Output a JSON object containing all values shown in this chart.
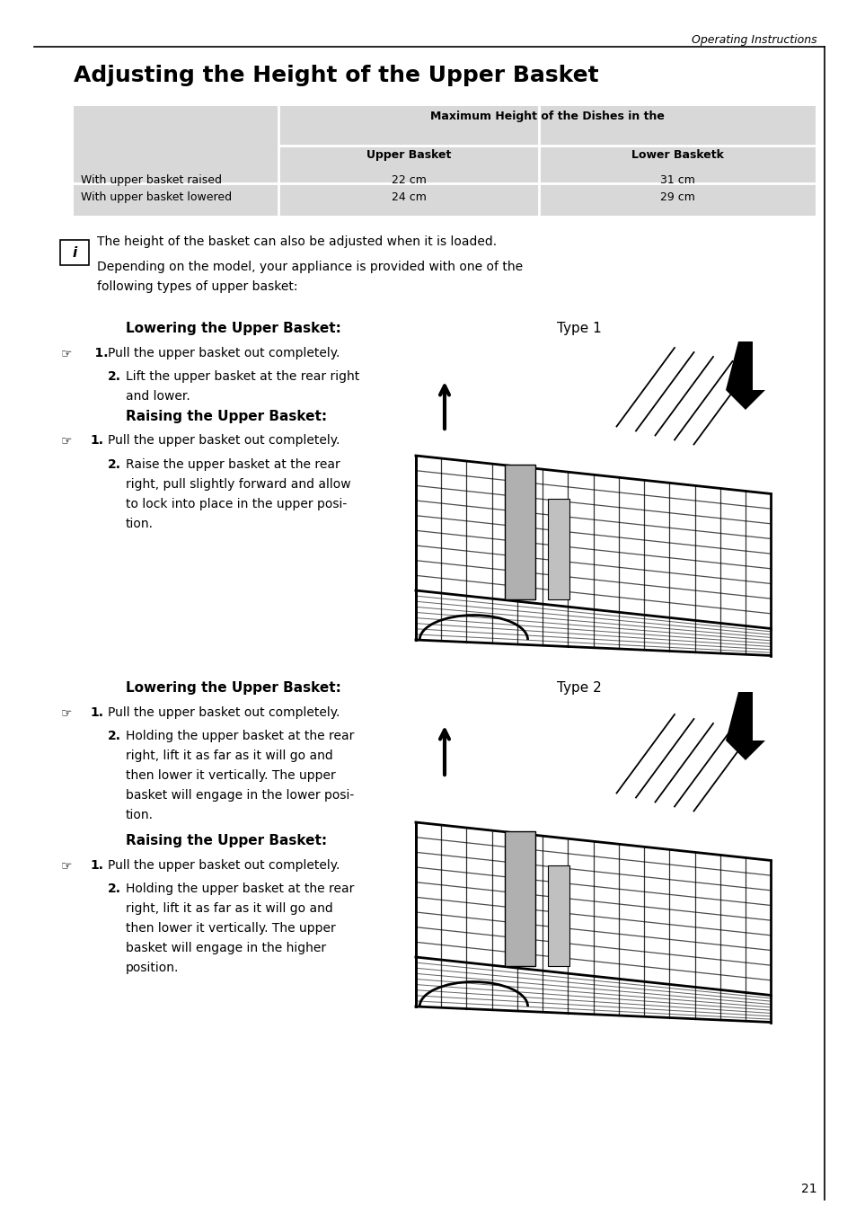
{
  "page_title": "Adjusting the Height of the Upper Basket",
  "header_text": "Operating Instructions",
  "page_number": "21",
  "table_header1": "Maximum Height of the Dishes in the",
  "table_header2a": "Upper Basket",
  "table_header2b": "Lower Basketk",
  "table_r1c1": "With upper basket raised",
  "table_r1c2": "22 cm",
  "table_r1c3": "31 cm",
  "table_r2c1": "With upper basket lowered",
  "table_r2c2": "24 cm",
  "table_r2c3": "29 cm",
  "table_bg": "#d8d8d8",
  "info1": "The height of the basket can also be adjusted when it is loaded.",
  "info2a": "Depending on the model, your appliance is provided with one of the",
  "info2b": "following types of upper basket:",
  "t1_head1": "Lowering the Upper Basket:",
  "t1_type": "Type 1",
  "t1_s1": "1. Pull the upper basket out completely.",
  "t1_s2a": "2. Lift the upper basket at the rear right",
  "t1_s2b": " and lower.",
  "t1_head2": "Raising the Upper Basket:",
  "t1_s3": "1. Pull the upper basket out completely.",
  "t1_s4a": "2. Raise the upper basket at the rear",
  "t1_s4b": " right, pull slightly forward and allow",
  "t1_s4c": " to lock into place in the upper posi-",
  "t1_s4d": " tion.",
  "t2_head1": "Lowering the Upper Basket:",
  "t2_type": "Type 2",
  "t2_s1": "1. Pull the upper basket out completely.",
  "t2_s2a": "2. Holding the upper basket at the rear",
  "t2_s2b": " right, lift it as far as it will go and",
  "t2_s2c": " then lower it vertically. The upper",
  "t2_s2d": " basket will engage in the lower posi-",
  "t2_s2e": " tion.",
  "t2_head2": "Raising the Upper Basket:",
  "t2_s3": "1. Pull the upper basket out completely.",
  "t2_s4a": "2. Holding the upper basket at the rear",
  "t2_s4b": " right, lift it as far as it will go and",
  "t2_s4c": " then lower it vertically. The upper",
  "t2_s4d": " basket will engage in the higher",
  "t2_s4e": " position.",
  "white": "#ffffff",
  "black": "#000000"
}
